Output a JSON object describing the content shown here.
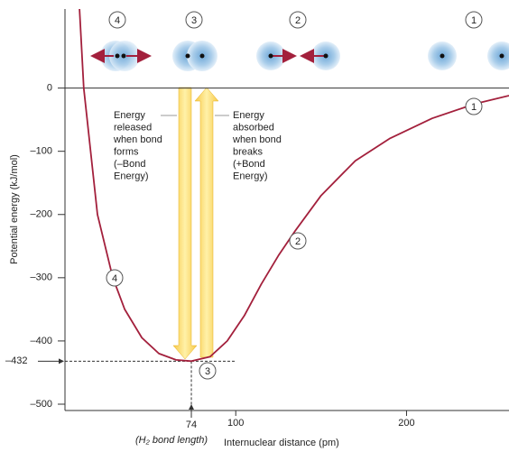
{
  "chart_data": {
    "type": "line",
    "xlabel": "Internuclear distance (pm)",
    "ylabel": "Potential energy (kJ/mol)",
    "xlim": [
      0,
      260
    ],
    "ylim": [
      -510,
      125
    ],
    "xticks": [
      100,
      200
    ],
    "yticks": [
      0,
      {
        "value": -100,
        "label": "–100"
      },
      {
        "value": -200,
        "label": "–200"
      },
      {
        "value": -300,
        "label": "–300"
      },
      {
        "value": -400,
        "label": "–400"
      },
      {
        "value": -500,
        "label": "–500"
      }
    ],
    "min_x": 74,
    "min_y": {
      "value": -432,
      "label": "–432"
    },
    "min_x_note": "(H₂ bond length)",
    "series": [
      {
        "color": "#a3203c",
        "x": [
          8.5,
          11,
          15,
          19,
          28,
          35,
          45,
          55,
          65,
          74,
          85,
          95,
          105,
          115,
          125,
          135,
          150,
          170,
          190,
          215,
          240,
          260
        ],
        "values": [
          125,
          0,
          -100,
          -200,
          -300,
          -350,
          -395,
          -420,
          -430,
          -432,
          -425,
          -400,
          -360,
          -310,
          -265,
          -225,
          -170,
          -115,
          -80,
          -48,
          -25,
          -12
        ]
      }
    ],
    "released_text": [
      "Energy",
      "released",
      "when bond",
      "forms",
      "(–Bond",
      "Energy)"
    ],
    "absorbed_text": [
      "Energy",
      "absorbed",
      "when bond",
      "breaks",
      "(+Bond",
      "Energy)"
    ],
    "stage_labels": [
      "4",
      "3",
      "2",
      "1"
    ],
    "curve_labels": [
      "1",
      "2",
      "3",
      "4"
    ]
  }
}
